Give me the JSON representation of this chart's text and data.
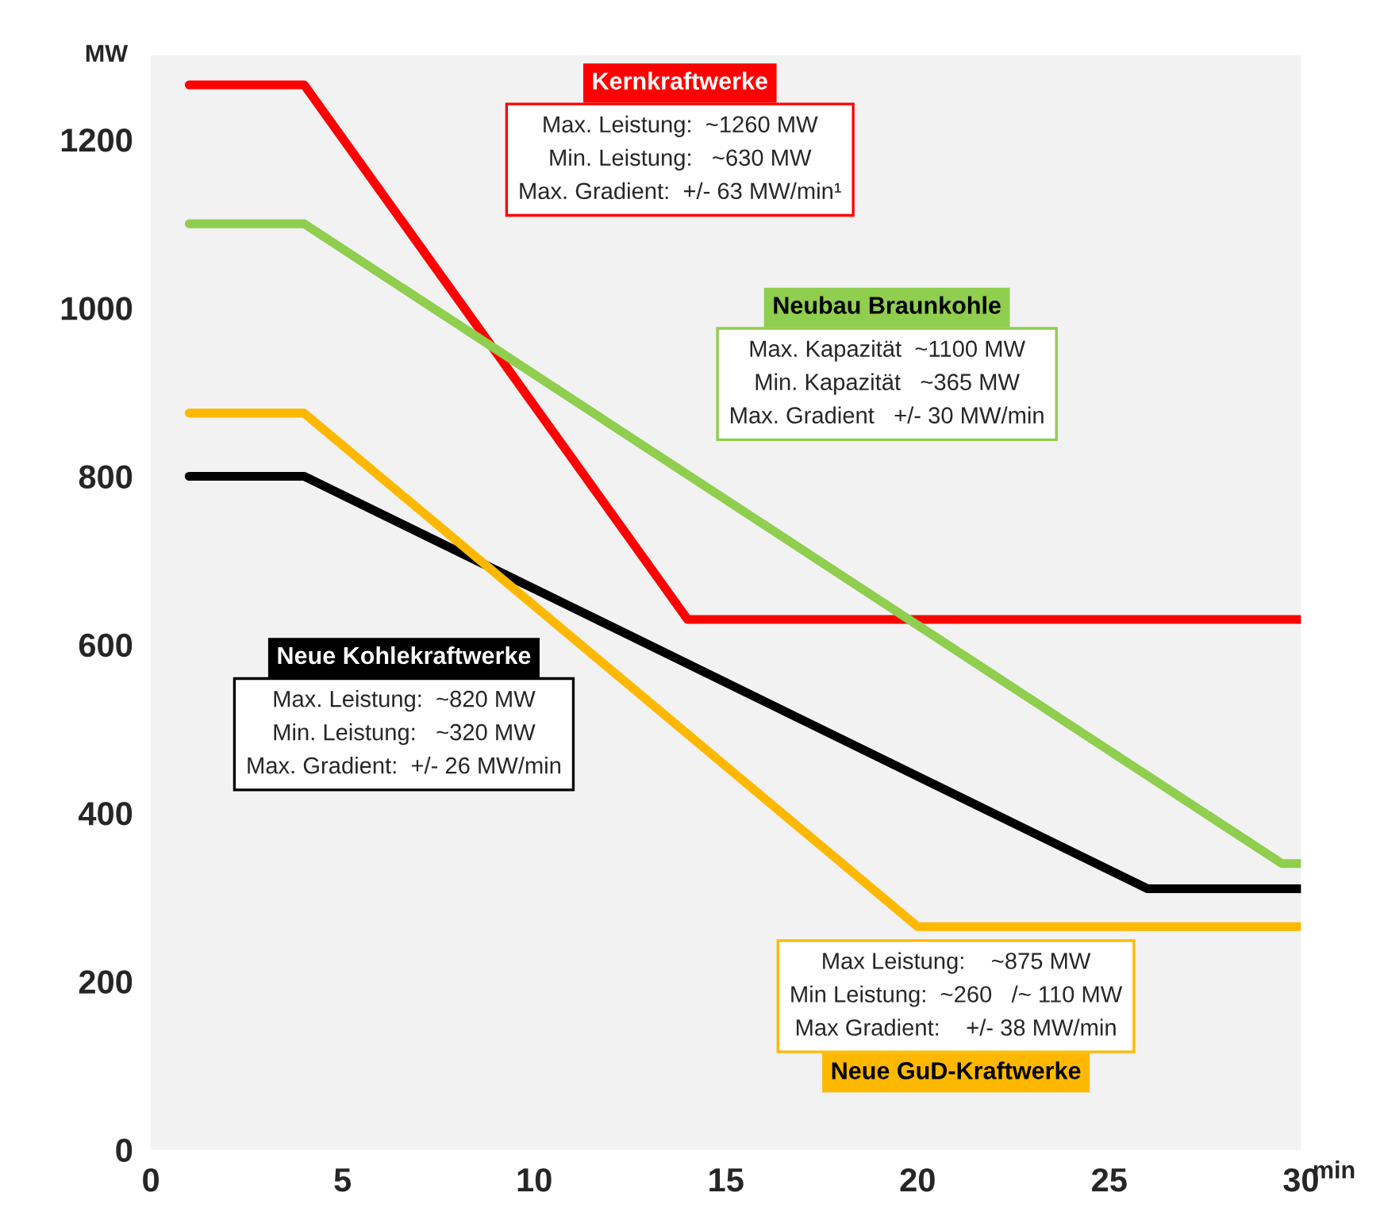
{
  "chart_data": {
    "type": "line",
    "ylabel": "MW",
    "xlabel": "min",
    "xlim": [
      0,
      30
    ],
    "xticks": [
      0,
      5,
      10,
      15,
      20,
      25,
      30
    ],
    "ylim": [
      0,
      1300
    ],
    "yticks": [
      0,
      200,
      400,
      600,
      800,
      1000,
      1200
    ],
    "grid": false,
    "marker": "none",
    "line_style": "solid",
    "series": [
      {
        "name": "Kernkraftwerke",
        "color": "#ff0000",
        "x": [
          1,
          4,
          14,
          30
        ],
        "values": [
          1265,
          1265,
          630,
          630
        ]
      },
      {
        "name": "Neubau Braunkohle",
        "color": "#8fce4e",
        "x": [
          1,
          4,
          29.5,
          30
        ],
        "values": [
          1100,
          1100,
          340,
          340
        ]
      },
      {
        "name": "Neue Kohlekraftwerke",
        "color": "#000000",
        "x": [
          1,
          4,
          26,
          30
        ],
        "values": [
          800,
          800,
          310,
          310
        ]
      },
      {
        "name": "Neue GuD-Kraftwerke",
        "color": "#ffb800",
        "x": [
          1,
          4,
          20,
          30
        ],
        "values": [
          875,
          875,
          265,
          265
        ]
      }
    ],
    "annotations": [
      "Max. Leistung:  ~1260 MW\nMin. Leistung:   ~630 MW\nMax. Gradient:  +/- 63 MW/min¹",
      "Max. Kapazität  ~1100 MW\nMin. Kapazität   ~365 MW\nMax. Gradient   +/- 30 MW/min",
      "Max. Leistung:  ~820 MW\nMin. Leistung:   ~320 MW\nMax. Gradient:  +/- 26 MW/min",
      "Max Leistung:    ~875 MW\nMin Leistung:  ~260   /~ 110 MW\nMax Gradient:    +/- 38 MW/min"
    ]
  }
}
